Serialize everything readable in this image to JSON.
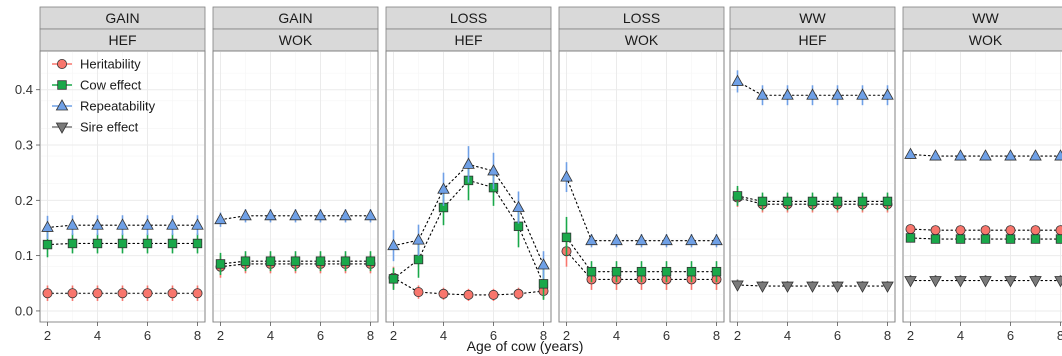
{
  "chart_data": {
    "type": "scatter",
    "xlabel": "Age of cow (years)",
    "ylabel": "",
    "x": [
      2,
      3,
      4,
      5,
      6,
      7,
      8
    ],
    "xticks": [
      2,
      4,
      6,
      8
    ],
    "xlim": [
      1.7,
      8.3
    ],
    "yticks": [
      0.0,
      0.1,
      0.2,
      0.3,
      0.4
    ],
    "ylim": [
      -0.02,
      0.47
    ],
    "grid": true,
    "legend_position": "top-left",
    "legend": [
      {
        "key": "heritability",
        "label": "Heritability",
        "shape": "circle",
        "color": "#f8766d"
      },
      {
        "key": "cow_effect",
        "label": "Cow effect",
        "shape": "square",
        "color": "#1aa84a"
      },
      {
        "key": "repeatability",
        "label": "Repeatability",
        "shape": "triangle-up",
        "color": "#6fa0e6"
      },
      {
        "key": "sire_effect",
        "label": "Sire effect",
        "shape": "triangle-down",
        "color": "#7a7a7a"
      }
    ],
    "panels": [
      {
        "strip_top": "GAIN",
        "strip_bottom": "HEF",
        "series": [
          {
            "key": "heritability",
            "values": [
              0.032,
              0.032,
              0.032,
              0.032,
              0.032,
              0.032,
              0.032
            ],
            "lower": [
              0.018,
              0.018,
              0.018,
              0.018,
              0.018,
              0.018,
              0.018
            ],
            "upper": [
              0.046,
              0.046,
              0.046,
              0.046,
              0.046,
              0.046,
              0.046
            ]
          },
          {
            "key": "cow_effect",
            "values": [
              0.12,
              0.122,
              0.122,
              0.122,
              0.122,
              0.122,
              0.122
            ],
            "lower": [
              0.097,
              0.104,
              0.104,
              0.104,
              0.104,
              0.104,
              0.104
            ],
            "upper": [
              0.143,
              0.14,
              0.14,
              0.14,
              0.14,
              0.14,
              0.14
            ]
          },
          {
            "key": "repeatability",
            "values": [
              0.151,
              0.155,
              0.155,
              0.155,
              0.155,
              0.155,
              0.155
            ],
            "lower": [
              0.13,
              0.137,
              0.137,
              0.137,
              0.137,
              0.137,
              0.137
            ],
            "upper": [
              0.172,
              0.173,
              0.173,
              0.173,
              0.173,
              0.173,
              0.173
            ]
          }
        ]
      },
      {
        "strip_top": "GAIN",
        "strip_bottom": "WOK",
        "series": [
          {
            "key": "heritability",
            "values": [
              0.08,
              0.085,
              0.085,
              0.085,
              0.085,
              0.085,
              0.085
            ],
            "lower": [
              0.06,
              0.068,
              0.068,
              0.068,
              0.068,
              0.068,
              0.068
            ],
            "upper": [
              0.1,
              0.102,
              0.102,
              0.102,
              0.102,
              0.102,
              0.102
            ]
          },
          {
            "key": "cow_effect",
            "values": [
              0.085,
              0.09,
              0.09,
              0.09,
              0.09,
              0.09,
              0.09
            ],
            "lower": [
              0.065,
              0.072,
              0.072,
              0.072,
              0.072,
              0.072,
              0.072
            ],
            "upper": [
              0.105,
              0.108,
              0.108,
              0.108,
              0.108,
              0.108,
              0.108
            ]
          },
          {
            "key": "repeatability",
            "values": [
              0.165,
              0.172,
              0.172,
              0.172,
              0.172,
              0.172,
              0.172
            ],
            "lower": [
              0.152,
              0.16,
              0.16,
              0.16,
              0.16,
              0.16,
              0.16
            ],
            "upper": [
              0.178,
              0.184,
              0.184,
              0.184,
              0.184,
              0.184,
              0.184
            ]
          }
        ]
      },
      {
        "strip_top": "LOSS",
        "strip_bottom": "HEF",
        "series": [
          {
            "key": "heritability",
            "values": [
              0.06,
              0.034,
              0.031,
              0.029,
              0.029,
              0.031,
              0.036
            ],
            "lower": [
              0.04,
              0.022,
              0.02,
              0.018,
              0.018,
              0.02,
              0.022
            ],
            "upper": [
              0.08,
              0.046,
              0.042,
              0.04,
              0.04,
              0.042,
              0.05
            ]
          },
          {
            "key": "cow_effect",
            "values": [
              0.058,
              0.093,
              0.187,
              0.236,
              0.223,
              0.153,
              0.049
            ],
            "lower": [
              0.038,
              0.06,
              0.155,
              0.2,
              0.19,
              0.115,
              0.02
            ],
            "upper": [
              0.078,
              0.126,
              0.219,
              0.272,
              0.256,
              0.191,
              0.078
            ]
          },
          {
            "key": "repeatability",
            "values": [
              0.118,
              0.128,
              0.22,
              0.265,
              0.253,
              0.187,
              0.083
            ],
            "lower": [
              0.09,
              0.1,
              0.19,
              0.232,
              0.22,
              0.158,
              0.058
            ],
            "upper": [
              0.146,
              0.156,
              0.25,
              0.298,
              0.286,
              0.216,
              0.108
            ]
          }
        ]
      },
      {
        "strip_top": "LOSS",
        "strip_bottom": "WOK",
        "series": [
          {
            "key": "heritability",
            "values": [
              0.108,
              0.057,
              0.057,
              0.057,
              0.057,
              0.057,
              0.057
            ],
            "lower": [
              0.08,
              0.038,
              0.038,
              0.038,
              0.038,
              0.038,
              0.038
            ],
            "upper": [
              0.136,
              0.076,
              0.076,
              0.076,
              0.076,
              0.076,
              0.076
            ]
          },
          {
            "key": "cow_effect",
            "values": [
              0.133,
              0.071,
              0.071,
              0.071,
              0.071,
              0.071,
              0.071
            ],
            "lower": [
              0.1,
              0.052,
              0.052,
              0.052,
              0.052,
              0.052,
              0.052
            ],
            "upper": [
              0.17,
              0.09,
              0.09,
              0.09,
              0.09,
              0.09,
              0.09
            ]
          },
          {
            "key": "repeatability",
            "values": [
              0.242,
              0.127,
              0.127,
              0.127,
              0.127,
              0.127,
              0.127
            ],
            "lower": [
              0.215,
              0.115,
              0.115,
              0.115,
              0.115,
              0.115,
              0.115
            ],
            "upper": [
              0.269,
              0.139,
              0.139,
              0.139,
              0.139,
              0.139,
              0.139
            ]
          }
        ]
      },
      {
        "strip_top": "WW",
        "strip_bottom": "HEF",
        "series": [
          {
            "key": "heritability",
            "values": [
              0.205,
              0.193,
              0.193,
              0.193,
              0.193,
              0.193,
              0.193
            ],
            "lower": [
              0.188,
              0.178,
              0.178,
              0.178,
              0.178,
              0.178,
              0.178
            ],
            "upper": [
              0.222,
              0.208,
              0.208,
              0.208,
              0.208,
              0.208,
              0.208
            ]
          },
          {
            "key": "cow_effect",
            "values": [
              0.208,
              0.198,
              0.198,
              0.198,
              0.198,
              0.198,
              0.198
            ],
            "lower": [
              0.19,
              0.182,
              0.182,
              0.182,
              0.182,
              0.182,
              0.182
            ],
            "upper": [
              0.226,
              0.214,
              0.214,
              0.214,
              0.214,
              0.214,
              0.214
            ]
          },
          {
            "key": "repeatability",
            "values": [
              0.415,
              0.39,
              0.39,
              0.39,
              0.39,
              0.39,
              0.39
            ],
            "lower": [
              0.395,
              0.372,
              0.372,
              0.372,
              0.372,
              0.372,
              0.372
            ],
            "upper": [
              0.435,
              0.408,
              0.408,
              0.408,
              0.408,
              0.408,
              0.408
            ]
          },
          {
            "key": "sire_effect",
            "values": [
              0.047,
              0.045,
              0.045,
              0.045,
              0.045,
              0.045,
              0.045
            ],
            "lower": [
              0.037,
              0.036,
              0.036,
              0.036,
              0.036,
              0.036,
              0.036
            ],
            "upper": [
              0.057,
              0.054,
              0.054,
              0.054,
              0.054,
              0.054,
              0.054
            ]
          }
        ]
      },
      {
        "strip_top": "WW",
        "strip_bottom": "WOK",
        "series": [
          {
            "key": "heritability",
            "values": [
              0.148,
              0.146,
              0.146,
              0.146,
              0.146,
              0.146,
              0.146
            ],
            "lower": [
              0.14,
              0.138,
              0.138,
              0.138,
              0.138,
              0.138,
              0.138
            ],
            "upper": [
              0.156,
              0.154,
              0.154,
              0.154,
              0.154,
              0.154,
              0.154
            ]
          },
          {
            "key": "cow_effect",
            "values": [
              0.132,
              0.13,
              0.13,
              0.13,
              0.13,
              0.13,
              0.13
            ],
            "lower": [
              0.124,
              0.122,
              0.122,
              0.122,
              0.122,
              0.122,
              0.122
            ],
            "upper": [
              0.14,
              0.138,
              0.138,
              0.138,
              0.138,
              0.138,
              0.138
            ]
          },
          {
            "key": "repeatability",
            "values": [
              0.283,
              0.28,
              0.28,
              0.28,
              0.28,
              0.28,
              0.28
            ],
            "lower": [
              0.275,
              0.272,
              0.272,
              0.272,
              0.272,
              0.272,
              0.272
            ],
            "upper": [
              0.291,
              0.288,
              0.288,
              0.288,
              0.288,
              0.288,
              0.288
            ]
          },
          {
            "key": "sire_effect",
            "values": [
              0.055,
              0.055,
              0.055,
              0.055,
              0.055,
              0.055,
              0.055
            ],
            "lower": [
              0.045,
              0.045,
              0.045,
              0.045,
              0.045,
              0.045,
              0.045
            ],
            "upper": [
              0.065,
              0.065,
              0.065,
              0.065,
              0.065,
              0.065,
              0.065
            ]
          }
        ]
      }
    ]
  }
}
